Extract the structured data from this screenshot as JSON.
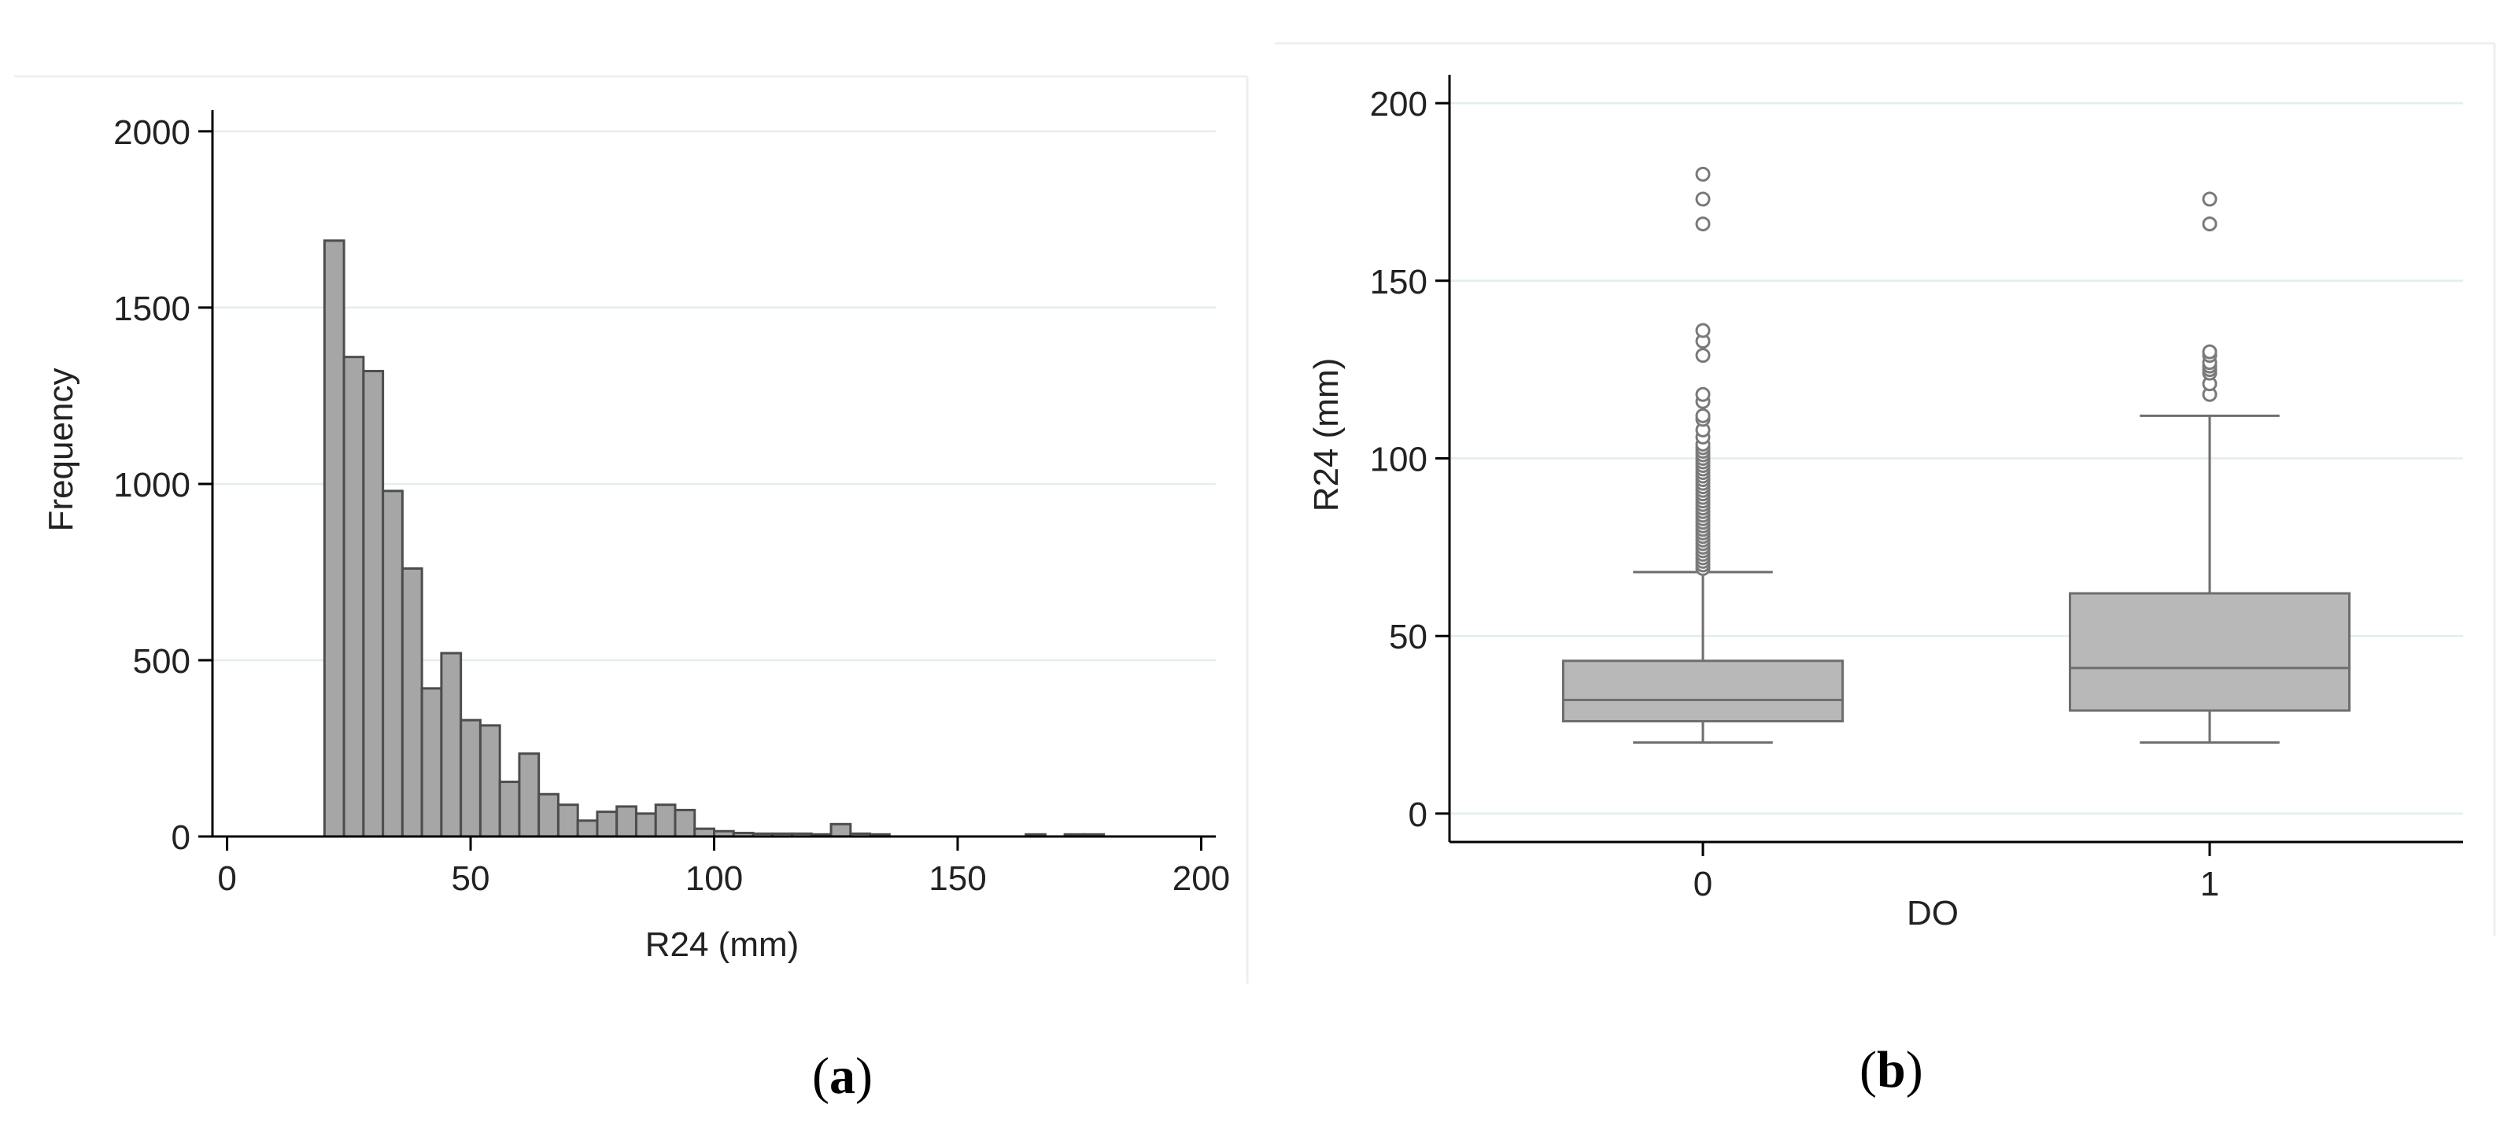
{
  "chart_data": [
    {
      "type": "bar",
      "panel_label": "a",
      "xlabel": "R24 (mm)",
      "ylabel": "Frequency",
      "xlim": [
        -3,
        203
      ],
      "ylim": [
        0,
        2060
      ],
      "x_ticks": [
        0,
        50,
        100,
        150,
        200
      ],
      "y_ticks": [
        0,
        500,
        1000,
        1500,
        2000
      ],
      "grid": "horizontal",
      "bar_color": "#a6a6a6",
      "bar_edge_color": "#4d4d4d",
      "bins": [
        {
          "x0": 20,
          "x1": 24,
          "count": 1690
        },
        {
          "x0": 24,
          "x1": 28,
          "count": 1360
        },
        {
          "x0": 28,
          "x1": 32,
          "count": 1320
        },
        {
          "x0": 32,
          "x1": 36,
          "count": 980
        },
        {
          "x0": 36,
          "x1": 40,
          "count": 760
        },
        {
          "x0": 40,
          "x1": 44,
          "count": 420
        },
        {
          "x0": 44,
          "x1": 48,
          "count": 520
        },
        {
          "x0": 48,
          "x1": 52,
          "count": 330
        },
        {
          "x0": 52,
          "x1": 56,
          "count": 315
        },
        {
          "x0": 56,
          "x1": 60,
          "count": 155
        },
        {
          "x0": 60,
          "x1": 64,
          "count": 235
        },
        {
          "x0": 64,
          "x1": 68,
          "count": 120
        },
        {
          "x0": 68,
          "x1": 72,
          "count": 90
        },
        {
          "x0": 72,
          "x1": 76,
          "count": 45
        },
        {
          "x0": 76,
          "x1": 80,
          "count": 70
        },
        {
          "x0": 80,
          "x1": 84,
          "count": 85
        },
        {
          "x0": 84,
          "x1": 88,
          "count": 65
        },
        {
          "x0": 88,
          "x1": 92,
          "count": 90
        },
        {
          "x0": 92,
          "x1": 96,
          "count": 75
        },
        {
          "x0": 96,
          "x1": 100,
          "count": 22
        },
        {
          "x0": 100,
          "x1": 104,
          "count": 15
        },
        {
          "x0": 104,
          "x1": 108,
          "count": 10
        },
        {
          "x0": 108,
          "x1": 112,
          "count": 8
        },
        {
          "x0": 112,
          "x1": 116,
          "count": 8
        },
        {
          "x0": 116,
          "x1": 120,
          "count": 8
        },
        {
          "x0": 120,
          "x1": 124,
          "count": 6
        },
        {
          "x0": 124,
          "x1": 128,
          "count": 35
        },
        {
          "x0": 128,
          "x1": 132,
          "count": 8
        },
        {
          "x0": 132,
          "x1": 136,
          "count": 6
        },
        {
          "x0": 164,
          "x1": 168,
          "count": 6
        },
        {
          "x0": 172,
          "x1": 176,
          "count": 6
        },
        {
          "x0": 176,
          "x1": 180,
          "count": 6
        }
      ]
    },
    {
      "type": "box",
      "panel_label": "b",
      "xlabel": "DO",
      "ylabel": "R24 (mm)",
      "ylim": [
        -8,
        208
      ],
      "y_ticks": [
        0,
        50,
        100,
        150,
        200
      ],
      "grid": "horizontal",
      "box_color": "#b8b8b8",
      "box_edge_color": "#6e6e6e",
      "groups": [
        {
          "label": "0",
          "min": 20,
          "q1": 26,
          "median": 32,
          "q3": 43,
          "whisker_high": 68,
          "outliers": [
            69,
            70,
            71,
            72,
            73,
            74,
            75,
            76,
            77,
            78,
            79,
            80,
            81,
            82,
            83,
            84,
            85,
            86,
            87,
            88,
            89,
            90,
            91,
            92,
            93,
            94,
            95,
            96,
            97,
            98,
            99,
            100,
            101,
            102,
            103,
            104,
            106,
            108,
            111,
            112,
            116,
            118,
            129,
            133,
            136,
            166,
            173,
            180
          ]
        },
        {
          "label": "1",
          "min": 20,
          "q1": 29,
          "median": 41,
          "q3": 62,
          "whisker_high": 112,
          "outliers": [
            118,
            121,
            124,
            125,
            126,
            127,
            129,
            130,
            166,
            173
          ]
        }
      ]
    }
  ]
}
